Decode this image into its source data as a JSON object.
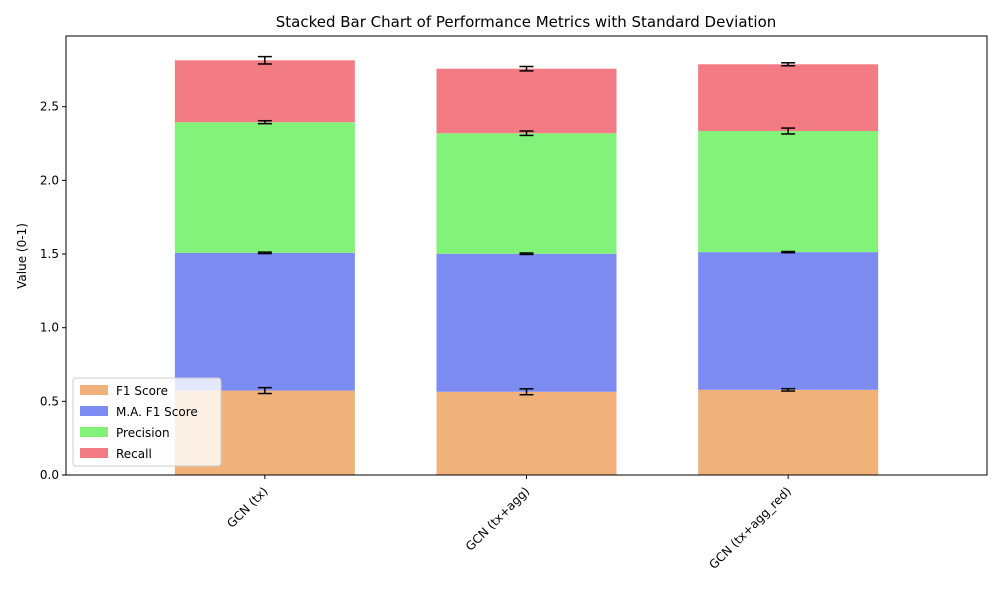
{
  "chart_data": {
    "type": "bar",
    "stacked": true,
    "title": "Stacked Bar Chart of Performance Metrics with Standard Deviation",
    "xlabel": "",
    "ylabel": "Value (0-1)",
    "ylim": [
      0,
      2.98
    ],
    "yticks": [
      "0.0",
      "0.5",
      "1.0",
      "1.5",
      "2.0",
      "2.5"
    ],
    "categories": [
      "GCN (tx)",
      "GCN (tx+agg)",
      "GCN (tx+agg_red)"
    ],
    "legend_position": "lower-left",
    "grid": false,
    "series": [
      {
        "name": "F1 Score",
        "color": "#f0b27a",
        "values": [
          0.573,
          0.565,
          0.578
        ],
        "std": [
          0.02,
          0.02,
          0.008
        ]
      },
      {
        "name": "M.A. F1 Score",
        "color": "#7d8cf2",
        "values": [
          0.935,
          0.937,
          0.935
        ],
        "std": [
          0.005,
          0.005,
          0.004
        ]
      },
      {
        "name": "Precision",
        "color": "#82f27b",
        "values": [
          0.887,
          0.818,
          0.822
        ],
        "std": [
          0.01,
          0.015,
          0.02
        ]
      },
      {
        "name": "Recall",
        "color": "#f27b84",
        "values": [
          0.42,
          0.438,
          0.453
        ],
        "std": [
          0.025,
          0.015,
          0.01
        ]
      }
    ]
  }
}
